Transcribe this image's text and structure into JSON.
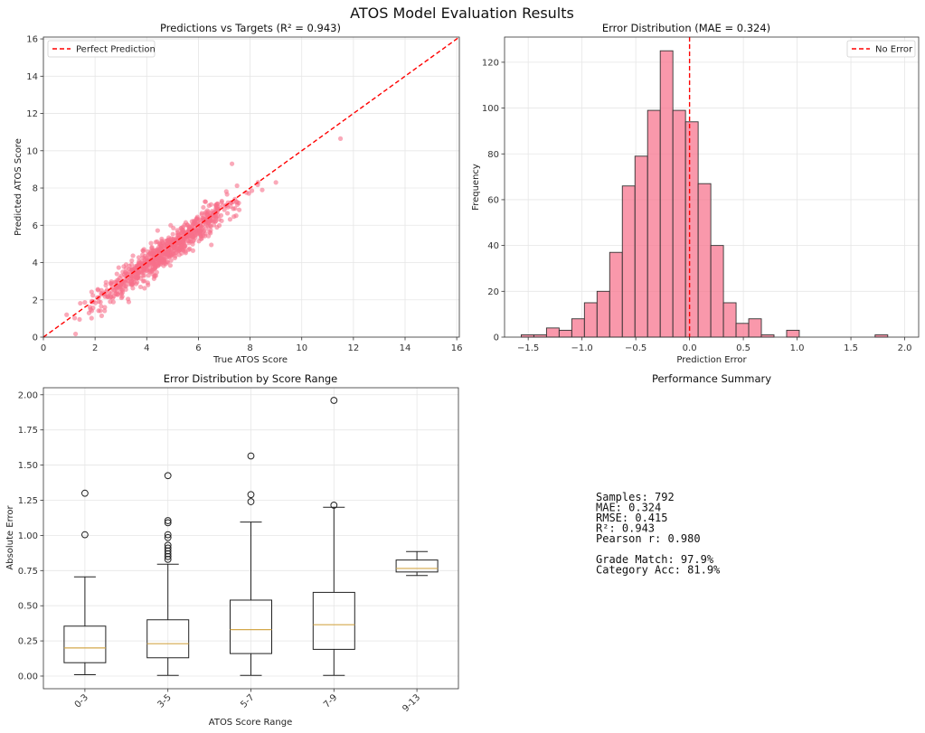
{
  "figure": {
    "suptitle": "ATOS Model Evaluation Results"
  },
  "chart_data": [
    {
      "type": "scatter",
      "title": "Predictions vs Targets (R² = 0.943)",
      "xlabel": "True ATOS Score",
      "ylabel": "Predicted ATOS Score",
      "xlim": [
        0,
        16.1
      ],
      "ylim": [
        0,
        16.1
      ],
      "xticks": [
        0,
        2,
        4,
        6,
        8,
        10,
        12,
        14,
        16
      ],
      "yticks": [
        0,
        2,
        4,
        6,
        8,
        10,
        12,
        14,
        16
      ],
      "grid": true,
      "point_color": "#f7708a",
      "reference_line": {
        "label": "Perfect Prediction",
        "from": [
          0,
          0
        ],
        "to": [
          16.1,
          16.1
        ],
        "color": "#ff0000",
        "style": "dashed"
      },
      "legend": {
        "position": "top-left",
        "entries": [
          "Perfect Prediction"
        ]
      },
      "n_points": 792,
      "notable_points": [
        {
          "x": 11.5,
          "y": 10.65
        },
        {
          "x": 7.3,
          "y": 9.3
        },
        {
          "x": 0.9,
          "y": 1.2
        },
        {
          "x": 1.4,
          "y": 0.95
        },
        {
          "x": 4.05,
          "y": 2.8
        },
        {
          "x": 6.5,
          "y": 4.95
        },
        {
          "x": 9.0,
          "y": 8.3
        }
      ]
    },
    {
      "type": "bar",
      "subtype": "histogram",
      "title": "Error Distribution (MAE = 0.324)",
      "xlabel": "Prediction Error",
      "ylabel": "Frequency",
      "xlim": [
        -1.72,
        2.13
      ],
      "ylim": [
        0,
        131
      ],
      "xticks": [
        -1.5,
        -1.0,
        -0.5,
        0.0,
        0.5,
        1.0,
        1.5,
        2.0
      ],
      "xtick_labels": [
        "−1.5",
        "−1.0",
        "−0.5",
        "0.0",
        "0.5",
        "1.0",
        "1.5",
        "2.0"
      ],
      "yticks": [
        0,
        20,
        40,
        60,
        80,
        100,
        120
      ],
      "grid": true,
      "bar_color": "#f7768f",
      "edge_color": "#333333",
      "bin_start": -1.565,
      "bin_width": 0.1175,
      "values": [
        1,
        1,
        4,
        3,
        8,
        15,
        20,
        37,
        66,
        79,
        99,
        125,
        99,
        94,
        67,
        40,
        15,
        6,
        8,
        1,
        0,
        3,
        0,
        0,
        0,
        0,
        0,
        0,
        1
      ],
      "reference_line": {
        "label": "No Error",
        "x": 0.0,
        "color": "#ff0000",
        "style": "dashed"
      },
      "legend": {
        "position": "top-right",
        "entries": [
          "No Error"
        ]
      }
    },
    {
      "type": "box",
      "title": "Error Distribution by Score Range",
      "xlabel": "ATOS Score Range",
      "ylabel": "Absolute Error",
      "ylim": [
        -0.09,
        2.05
      ],
      "yticks": [
        0.0,
        0.25,
        0.5,
        0.75,
        1.0,
        1.25,
        1.5,
        1.75,
        2.0
      ],
      "ytick_labels": [
        "0.00",
        "0.25",
        "0.50",
        "0.75",
        "1.00",
        "1.25",
        "1.50",
        "1.75",
        "2.00"
      ],
      "grid": true,
      "median_color": "#d4a84b",
      "categories": [
        "0-3",
        "3-5",
        "5-7",
        "7-9",
        "9-13"
      ],
      "boxes": [
        {
          "whisker_low": 0.01,
          "q1": 0.095,
          "median": 0.2,
          "q3": 0.355,
          "whisker_high": 0.705,
          "outliers": [
            1.005,
            1.3
          ]
        },
        {
          "whisker_low": 0.005,
          "q1": 0.13,
          "median": 0.23,
          "q3": 0.4,
          "whisker_high": 0.795,
          "outliers": [
            0.83,
            0.85,
            0.87,
            0.89,
            0.91,
            0.93,
            0.985,
            1.005,
            1.09,
            1.105,
            1.425
          ]
        },
        {
          "whisker_low": 0.005,
          "q1": 0.16,
          "median": 0.33,
          "q3": 0.54,
          "whisker_high": 1.095,
          "outliers": [
            1.24,
            1.29,
            1.565
          ]
        },
        {
          "whisker_low": 0.005,
          "q1": 0.19,
          "median": 0.365,
          "q3": 0.595,
          "whisker_high": 1.2,
          "outliers": [
            1.215,
            1.96
          ]
        },
        {
          "whisker_low": 0.715,
          "q1": 0.74,
          "median": 0.765,
          "q3": 0.825,
          "whisker_high": 0.885,
          "outliers": []
        }
      ]
    }
  ],
  "summary": {
    "title": "Performance Summary",
    "lines": [
      "Samples: 792",
      "MAE: 0.324",
      "RMSE: 0.415",
      "R²: 0.943",
      "Pearson r: 0.980",
      "",
      "Grade Match: 97.9%",
      "Category Acc: 81.9%"
    ]
  }
}
